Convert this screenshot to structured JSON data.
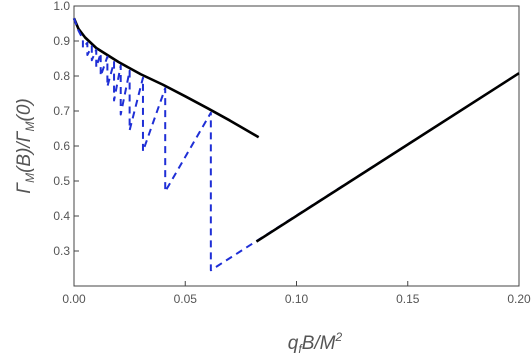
{
  "chart_data": {
    "type": "line",
    "xlabel": "q_fB/M^2",
    "ylabel": "Γ_M(B)/Γ_M(0)",
    "xlim": [
      0.0,
      0.2
    ],
    "ylim": [
      0.2,
      1.0
    ],
    "x_ticks": [
      "0.00",
      "0.05",
      "0.10",
      "0.15",
      "0.20"
    ],
    "y_ticks": [
      "0.3",
      "0.4",
      "0.5",
      "0.6",
      "0.7",
      "0.8",
      "0.9",
      "1.0"
    ],
    "grid": false,
    "legend": "none",
    "series": [
      {
        "style": "solid",
        "color": "#000000",
        "x": [
          0.0,
          0.002,
          0.005,
          0.01,
          0.02,
          0.03,
          0.04,
          0.05,
          0.06,
          0.07,
          0.083
        ],
        "y": [
          0.965,
          0.935,
          0.91,
          0.88,
          0.84,
          0.805,
          0.775,
          0.742,
          0.708,
          0.673,
          0.625
        ]
      },
      {
        "style": "dashed",
        "color": "#1f2fd6",
        "x": [
          0.0,
          0.002,
          0.004,
          0.004,
          0.006,
          0.006,
          0.008,
          0.008,
          0.01,
          0.01,
          0.012,
          0.012,
          0.015,
          0.015,
          0.018,
          0.018,
          0.021,
          0.021,
          0.025,
          0.025,
          0.031,
          0.031,
          0.041,
          0.041,
          0.0615,
          0.0615,
          0.2
        ],
        "y": [
          0.965,
          0.93,
          0.905,
          0.88,
          0.895,
          0.86,
          0.885,
          0.845,
          0.875,
          0.825,
          0.865,
          0.8,
          0.855,
          0.77,
          0.84,
          0.73,
          0.83,
          0.69,
          0.815,
          0.645,
          0.795,
          0.585,
          0.765,
          0.47,
          0.695,
          0.245,
          0.808
        ]
      },
      {
        "style": "solid",
        "color": "#000000",
        "x": [
          0.082,
          0.2
        ],
        "y": [
          0.327,
          0.808
        ]
      }
    ]
  }
}
